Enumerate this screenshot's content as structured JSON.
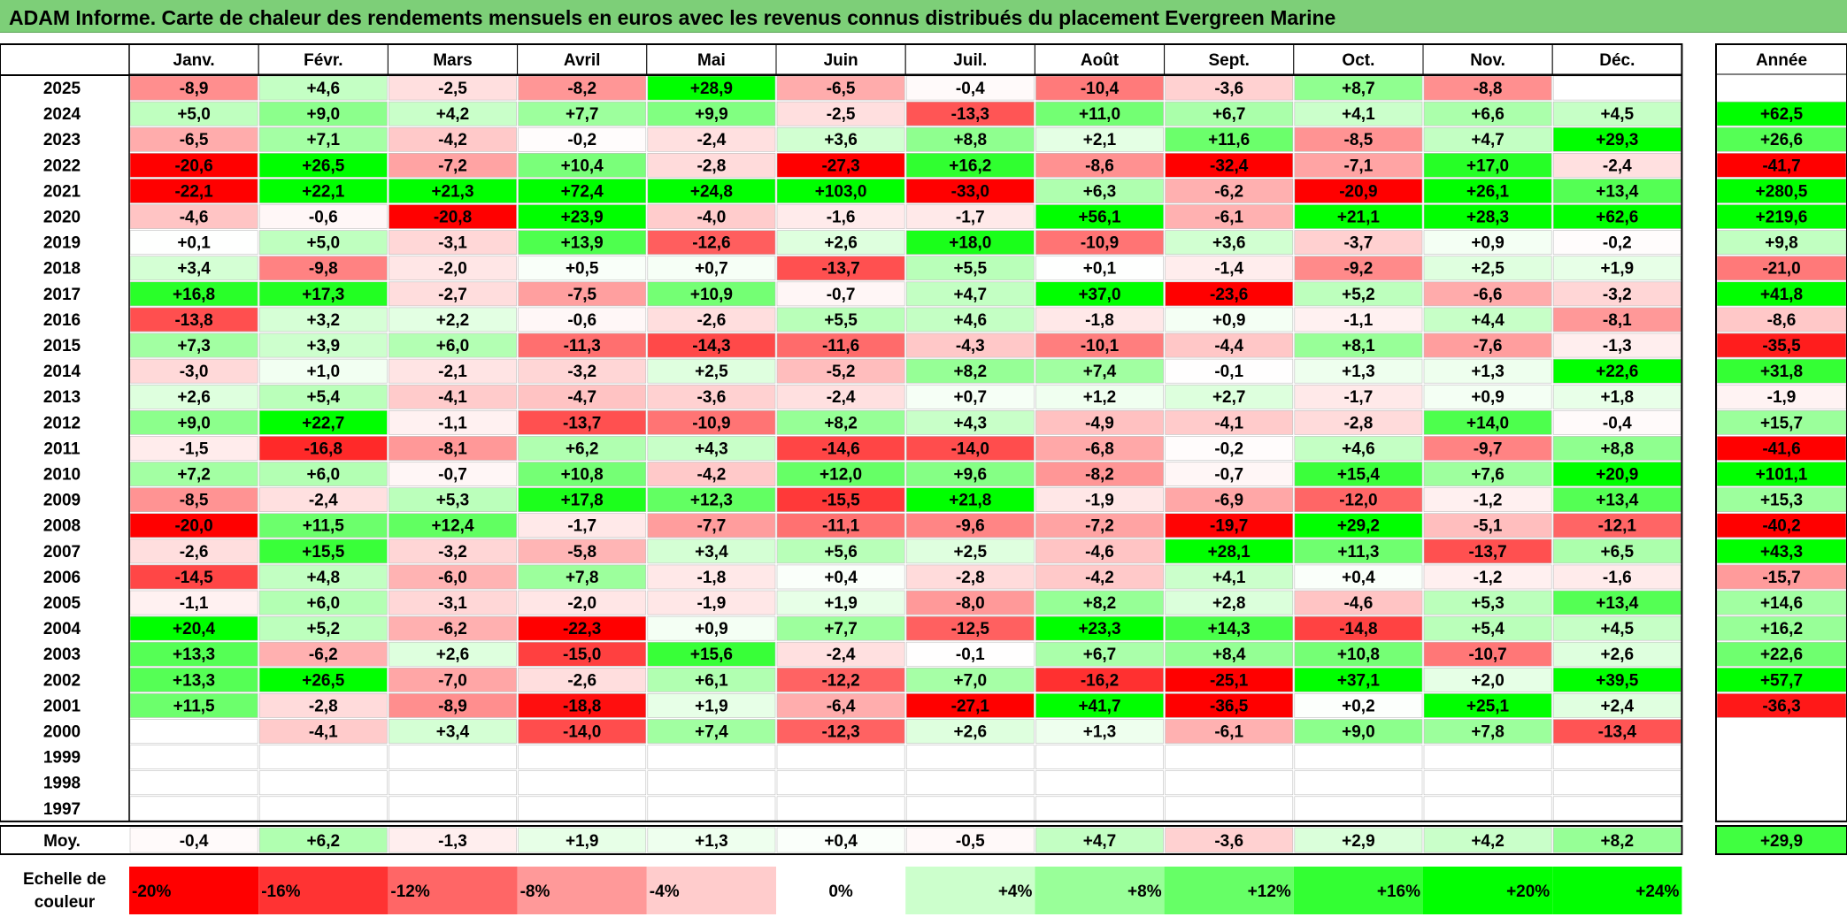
{
  "title": "ADAM Informe. Carte de chaleur des rendements mensuels en euros avec les revenus connus distribués du placement Evergreen Marine",
  "chart_data": {
    "type": "heatmap",
    "title": "ADAM Informe. Carte de chaleur des rendements mensuels en euros avec les revenus connus distribués du placement Evergreen Marine",
    "columns": [
      "Janv.",
      "Févr.",
      "Mars",
      "Avril",
      "Mai",
      "Juin",
      "Juil.",
      "Août",
      "Sept.",
      "Oct.",
      "Nov.",
      "Déc."
    ],
    "annual_header": "Année",
    "rows": [
      {
        "year": "2025",
        "values": [
          "-8,9",
          "+4,6",
          "-2,5",
          "-8,2",
          "+28,9",
          "-6,5",
          "-0,4",
          "-10,4",
          "-3,6",
          "+8,7",
          "-8,8",
          ""
        ],
        "annual": ""
      },
      {
        "year": "2024",
        "values": [
          "+5,0",
          "+9,0",
          "+4,2",
          "+7,7",
          "+9,9",
          "-2,5",
          "-13,3",
          "+11,0",
          "+6,7",
          "+4,1",
          "+6,6",
          "+4,5"
        ],
        "annual": "+62,5"
      },
      {
        "year": "2023",
        "values": [
          "-6,5",
          "+7,1",
          "-4,2",
          "-0,2",
          "-2,4",
          "+3,6",
          "+8,8",
          "+2,1",
          "+11,6",
          "-8,5",
          "+4,7",
          "+29,3"
        ],
        "annual": "+26,6"
      },
      {
        "year": "2022",
        "values": [
          "-20,6",
          "+26,5",
          "-7,2",
          "+10,4",
          "-2,8",
          "-27,3",
          "+16,2",
          "-8,6",
          "-32,4",
          "-7,1",
          "+17,0",
          "-2,4"
        ],
        "annual": "-41,7"
      },
      {
        "year": "2021",
        "values": [
          "-22,1",
          "+22,1",
          "+21,3",
          "+72,4",
          "+24,8",
          "+103,0",
          "-33,0",
          "+6,3",
          "-6,2",
          "-20,9",
          "+26,1",
          "+13,4"
        ],
        "annual": "+280,5"
      },
      {
        "year": "2020",
        "values": [
          "-4,6",
          "-0,6",
          "-20,8",
          "+23,9",
          "-4,0",
          "-1,6",
          "-1,7",
          "+56,1",
          "-6,1",
          "+21,1",
          "+28,3",
          "+62,6"
        ],
        "annual": "+219,6"
      },
      {
        "year": "2019",
        "values": [
          "+0,1",
          "+5,0",
          "-3,1",
          "+13,9",
          "-12,6",
          "+2,6",
          "+18,0",
          "-10,9",
          "+3,6",
          "-3,7",
          "+0,9",
          "-0,2"
        ],
        "annual": "+9,8"
      },
      {
        "year": "2018",
        "values": [
          "+3,4",
          "-9,8",
          "-2,0",
          "+0,5",
          "+0,7",
          "-13,7",
          "+5,5",
          "+0,1",
          "-1,4",
          "-9,2",
          "+2,5",
          "+1,9"
        ],
        "annual": "-21,0"
      },
      {
        "year": "2017",
        "values": [
          "+16,8",
          "+17,3",
          "-2,7",
          "-7,5",
          "+10,9",
          "-0,7",
          "+4,7",
          "+37,0",
          "-23,6",
          "+5,2",
          "-6,6",
          "-3,2"
        ],
        "annual": "+41,8"
      },
      {
        "year": "2016",
        "values": [
          "-13,8",
          "+3,2",
          "+2,2",
          "-0,6",
          "-2,6",
          "+5,5",
          "+4,6",
          "-1,8",
          "+0,9",
          "-1,1",
          "+4,4",
          "-8,1"
        ],
        "annual": "-8,6"
      },
      {
        "year": "2015",
        "values": [
          "+7,3",
          "+3,9",
          "+6,0",
          "-11,3",
          "-14,3",
          "-11,6",
          "-4,3",
          "-10,1",
          "-4,4",
          "+8,1",
          "-7,6",
          "-1,3"
        ],
        "annual": "-35,5"
      },
      {
        "year": "2014",
        "values": [
          "-3,0",
          "+1,0",
          "-2,1",
          "-3,2",
          "+2,5",
          "-5,2",
          "+8,2",
          "+7,4",
          "-0,1",
          "+1,3",
          "+1,3",
          "+22,6"
        ],
        "annual": "+31,8"
      },
      {
        "year": "2013",
        "values": [
          "+2,6",
          "+5,4",
          "-4,1",
          "-4,7",
          "-3,6",
          "-2,4",
          "+0,7",
          "+1,2",
          "+2,7",
          "-1,7",
          "+0,9",
          "+1,8"
        ],
        "annual": "-1,9"
      },
      {
        "year": "2012",
        "values": [
          "+9,0",
          "+22,7",
          "-1,1",
          "-13,7",
          "-10,9",
          "+8,2",
          "+4,3",
          "-4,9",
          "-4,1",
          "-2,8",
          "+14,0",
          "-0,4"
        ],
        "annual": "+15,7"
      },
      {
        "year": "2011",
        "values": [
          "-1,5",
          "-16,8",
          "-8,1",
          "+6,2",
          "+4,3",
          "-14,6",
          "-14,0",
          "-6,8",
          "-0,2",
          "+4,6",
          "-9,7",
          "+8,8"
        ],
        "annual": "-41,6"
      },
      {
        "year": "2010",
        "values": [
          "+7,2",
          "+6,0",
          "-0,7",
          "+10,8",
          "-4,2",
          "+12,0",
          "+9,6",
          "-8,2",
          "-0,7",
          "+15,4",
          "+7,6",
          "+20,9"
        ],
        "annual": "+101,1"
      },
      {
        "year": "2009",
        "values": [
          "-8,5",
          "-2,4",
          "+5,3",
          "+17,8",
          "+12,3",
          "-15,5",
          "+21,8",
          "-1,9",
          "-6,9",
          "-12,0",
          "-1,2",
          "+13,4"
        ],
        "annual": "+15,3"
      },
      {
        "year": "2008",
        "values": [
          "-20,0",
          "+11,5",
          "+12,4",
          "-1,7",
          "-7,7",
          "-11,1",
          "-9,6",
          "-7,2",
          "-19,7",
          "+29,2",
          "-5,1",
          "-12,1"
        ],
        "annual": "-40,2"
      },
      {
        "year": "2007",
        "values": [
          "-2,6",
          "+15,5",
          "-3,2",
          "-5,8",
          "+3,4",
          "+5,6",
          "+2,5",
          "-4,6",
          "+28,1",
          "+11,3",
          "-13,7",
          "+6,5"
        ],
        "annual": "+43,3"
      },
      {
        "year": "2006",
        "values": [
          "-14,5",
          "+4,8",
          "-6,0",
          "+7,8",
          "-1,8",
          "+0,4",
          "-2,8",
          "-4,2",
          "+4,1",
          "+0,4",
          "-1,2",
          "-1,6"
        ],
        "annual": "-15,7"
      },
      {
        "year": "2005",
        "values": [
          "-1,1",
          "+6,0",
          "-3,1",
          "-2,0",
          "-1,9",
          "+1,9",
          "-8,0",
          "+8,2",
          "+2,8",
          "-4,6",
          "+5,3",
          "+13,4"
        ],
        "annual": "+14,6"
      },
      {
        "year": "2004",
        "values": [
          "+20,4",
          "+5,2",
          "-6,2",
          "-22,3",
          "+0,9",
          "+7,7",
          "-12,5",
          "+23,3",
          "+14,3",
          "-14,8",
          "+5,4",
          "+4,5"
        ],
        "annual": "+16,2"
      },
      {
        "year": "2003",
        "values": [
          "+13,3",
          "-6,2",
          "+2,6",
          "-15,0",
          "+15,6",
          "-2,4",
          "-0,1",
          "+6,7",
          "+8,4",
          "+10,8",
          "-10,7",
          "+2,6"
        ],
        "annual": "+22,6"
      },
      {
        "year": "2002",
        "values": [
          "+13,3",
          "+26,5",
          "-7,0",
          "-2,6",
          "+6,1",
          "-12,2",
          "+7,0",
          "-16,2",
          "-25,1",
          "+37,1",
          "+2,0",
          "+39,5"
        ],
        "annual": "+57,7"
      },
      {
        "year": "2001",
        "values": [
          "+11,5",
          "-2,8",
          "-8,9",
          "-18,8",
          "+1,9",
          "-6,4",
          "-27,1",
          "+41,7",
          "-36,5",
          "+0,2",
          "+25,1",
          "+2,4"
        ],
        "annual": "-36,3"
      },
      {
        "year": "2000",
        "values": [
          "",
          "-4,1",
          "+3,4",
          "-14,0",
          "+7,4",
          "-12,3",
          "+2,6",
          "+1,3",
          "-6,1",
          "+9,0",
          "+7,8",
          "-13,4"
        ],
        "annual": ""
      },
      {
        "year": "1999",
        "values": [
          "",
          "",
          "",
          "",
          "",
          "",
          "",
          "",
          "",
          "",
          "",
          ""
        ],
        "annual": ""
      },
      {
        "year": "1998",
        "values": [
          "",
          "",
          "",
          "",
          "",
          "",
          "",
          "",
          "",
          "",
          "",
          ""
        ],
        "annual": ""
      },
      {
        "year": "1997",
        "values": [
          "",
          "",
          "",
          "",
          "",
          "",
          "",
          "",
          "",
          "",
          "",
          ""
        ],
        "annual": ""
      }
    ],
    "average": {
      "label": "Moy.",
      "values": [
        "-0,4",
        "+6,2",
        "-1,3",
        "+1,9",
        "+1,3",
        "+0,4",
        "-0,5",
        "+4,7",
        "-3,6",
        "+2,9",
        "+4,2",
        "+8,2"
      ],
      "annual": "+29,9"
    },
    "scale": {
      "label_line1": "Echelle de",
      "label_line2": "couleur",
      "steps": [
        {
          "label": "-20%",
          "value": -20
        },
        {
          "label": "-16%",
          "value": -16
        },
        {
          "label": "-12%",
          "value": -12
        },
        {
          "label": "-8%",
          "value": -8
        },
        {
          "label": "-4%",
          "value": -4
        },
        {
          "label": "0%",
          "value": 0
        },
        {
          "label": "+4%",
          "value": 4
        },
        {
          "label": "+8%",
          "value": 8
        },
        {
          "label": "+12%",
          "value": 12
        },
        {
          "label": "+16%",
          "value": 16
        },
        {
          "label": "+20%",
          "value": 20
        },
        {
          "label": "+24%",
          "value": 24
        }
      ]
    },
    "colors": {
      "negative": "#ff0000",
      "neutral": "#ffffff",
      "positive": "#00ff00",
      "title_bg": "#7dcf78"
    }
  }
}
